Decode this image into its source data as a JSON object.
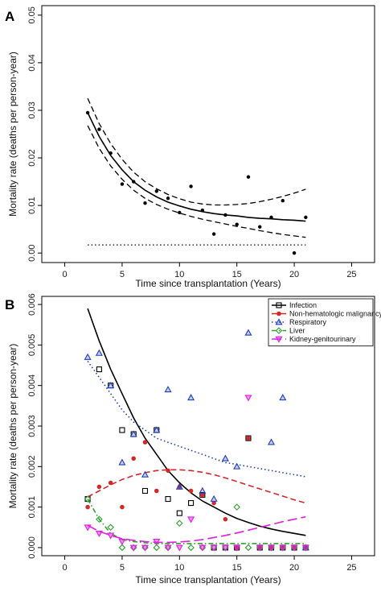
{
  "chart_data": [
    {
      "type": "scatter",
      "panel_label": "A",
      "xlabel": "Time since transplantation (Years)",
      "ylabel": "Mortality rate (deaths per person-year)",
      "xlim": [
        -2,
        27
      ],
      "ylim": [
        -0.002,
        0.052
      ],
      "xticks": [
        "0",
        "5",
        "10",
        "15",
        "20",
        "25"
      ],
      "yticks": [
        "0.00",
        "0.01",
        "0.02",
        "0.03",
        "0.04",
        "0.05"
      ],
      "grid": false,
      "legend": null,
      "series": [
        {
          "kind": "points",
          "x": [
            2,
            3,
            4,
            5,
            6,
            7,
            8,
            9,
            10,
            11,
            12,
            13,
            14,
            15,
            16,
            17,
            18,
            19,
            20,
            21
          ],
          "y": [
            0.0295,
            0.026,
            0.021,
            0.0145,
            0.015,
            0.0105,
            0.013,
            0.0115,
            0.0085,
            0.014,
            0.009,
            0.004,
            0.008,
            0.006,
            0.016,
            0.0055,
            0.0075,
            0.011,
            0.0,
            0.0075
          ]
        },
        {
          "kind": "fit",
          "style": "solid",
          "x": [
            2,
            3,
            4,
            5,
            6,
            7,
            8,
            9,
            10,
            11,
            12,
            13,
            14,
            15,
            16,
            17,
            18,
            19,
            20,
            21
          ],
          "y": [
            0.0295,
            0.0245,
            0.0205,
            0.0175,
            0.015,
            0.0132,
            0.0118,
            0.0107,
            0.0099,
            0.0092,
            0.0087,
            0.0083,
            0.008,
            0.0078,
            0.0075,
            0.0073,
            0.0072,
            0.007,
            0.0069,
            0.0067
          ]
        },
        {
          "kind": "ci_upper",
          "style": "dashed",
          "x": [
            2,
            3,
            4,
            5,
            6,
            7,
            8,
            9,
            10,
            11,
            12,
            13,
            14,
            15,
            16,
            17,
            18,
            19,
            20,
            21
          ],
          "y": [
            0.0325,
            0.0272,
            0.023,
            0.0197,
            0.017,
            0.015,
            0.0135,
            0.0123,
            0.0114,
            0.0107,
            0.0103,
            0.0101,
            0.0101,
            0.0102,
            0.0104,
            0.0108,
            0.0113,
            0.0119,
            0.0126,
            0.0134
          ]
        },
        {
          "kind": "ci_lower",
          "style": "dashed",
          "x": [
            2,
            3,
            4,
            5,
            6,
            7,
            8,
            9,
            10,
            11,
            12,
            13,
            14,
            15,
            16,
            17,
            18,
            19,
            20,
            21
          ],
          "y": [
            0.0268,
            0.022,
            0.0183,
            0.0155,
            0.0132,
            0.0115,
            0.0102,
            0.0092,
            0.0084,
            0.0077,
            0.0071,
            0.0066,
            0.0061,
            0.0056,
            0.0052,
            0.0047,
            0.0043,
            0.0039,
            0.0036,
            0.0033
          ]
        },
        {
          "kind": "reference",
          "style": "dotted",
          "x": [
            2,
            21
          ],
          "y": [
            0.0017,
            0.0017
          ]
        }
      ]
    },
    {
      "type": "scatter",
      "panel_label": "B",
      "xlabel": "Time since transplantation (Years)",
      "ylabel": "Mortality rate (deaths per person-year)",
      "xlim": [
        -2,
        27
      ],
      "ylim": [
        -0.0002,
        0.0062
      ],
      "xticks": [
        "0",
        "5",
        "10",
        "15",
        "20",
        "25"
      ],
      "yticks": [
        "0.000",
        "0.001",
        "0.002",
        "0.003",
        "0.004",
        "0.005",
        "0.006"
      ],
      "grid": false,
      "legend": "top-right",
      "series": [
        {
          "name": "Infection",
          "color": "#000000",
          "marker": "square",
          "line": "solid",
          "points_x": [
            2,
            3,
            4,
            5,
            6,
            7,
            8,
            9,
            10,
            11,
            12,
            13,
            14,
            15,
            16,
            17,
            18,
            19,
            20,
            21
          ],
          "points_y": [
            0.0012,
            0.0044,
            0.004,
            0.0029,
            0.0028,
            0.0014,
            0.0029,
            0.0012,
            0.00085,
            0.0011,
            0.0013,
            0.0,
            0.0,
            0.0,
            0.0027,
            0.0,
            0.0,
            0.0,
            0.0,
            0.0
          ],
          "curve_x": [
            2,
            3,
            4,
            5,
            6,
            7,
            8,
            9,
            10,
            11,
            12,
            13,
            14,
            15,
            16,
            17,
            18,
            19,
            20,
            21
          ],
          "curve_y": [
            0.0059,
            0.0051,
            0.0044,
            0.0038,
            0.0032,
            0.0027,
            0.0023,
            0.0019,
            0.0016,
            0.00135,
            0.00115,
            0.001,
            0.00085,
            0.00072,
            0.00062,
            0.00053,
            0.00046,
            0.0004,
            0.00035,
            0.0003
          ]
        },
        {
          "name": "Non-hematologic malignancy",
          "color": "#d62728",
          "marker": "circle",
          "line": "dashed",
          "points_x": [
            2,
            3,
            4,
            5,
            6,
            7,
            8,
            9,
            10,
            11,
            12,
            13,
            14,
            15,
            16,
            17,
            18,
            19,
            20,
            21
          ],
          "points_y": [
            0.001,
            0.0015,
            0.0016,
            0.001,
            0.0022,
            0.0026,
            0.0014,
            0.0019,
            0.0015,
            0.0014,
            0.0013,
            0.0011,
            0.0007,
            0.0,
            0.0027,
            0.0,
            0.0,
            0.0,
            0.0,
            0.0
          ],
          "curve_x": [
            2,
            3,
            4,
            5,
            6,
            7,
            8,
            9,
            10,
            11,
            12,
            13,
            14,
            15,
            16,
            17,
            18,
            19,
            20,
            21
          ],
          "curve_y": [
            0.00125,
            0.0014,
            0.00155,
            0.00168,
            0.00178,
            0.00185,
            0.0019,
            0.00192,
            0.00192,
            0.0019,
            0.00186,
            0.0018,
            0.00172,
            0.00163,
            0.00154,
            0.00145,
            0.00136,
            0.00127,
            0.00118,
            0.0011
          ]
        },
        {
          "name": "Respiratory",
          "color": "#1f3fbf",
          "marker": "triangle-up",
          "line": "dotted",
          "points_x": [
            2,
            3,
            4,
            5,
            6,
            7,
            8,
            9,
            10,
            11,
            12,
            13,
            14,
            15,
            16,
            18,
            19,
            21
          ],
          "points_y": [
            0.0047,
            0.0048,
            0.004,
            0.0021,
            0.0028,
            0.0018,
            0.0029,
            0.0039,
            0.0015,
            0.0037,
            0.0014,
            0.0012,
            0.0022,
            0.002,
            0.0053,
            0.0026,
            0.0037,
            0.0
          ],
          "curve_x": [
            2,
            3,
            4,
            5,
            6,
            7,
            8,
            9,
            10,
            11,
            12,
            13,
            14,
            15,
            16,
            17,
            18,
            19,
            20,
            21
          ],
          "curve_y": [
            0.0046,
            0.0042,
            0.0038,
            0.0034,
            0.0031,
            0.0029,
            0.0027,
            0.0026,
            0.0025,
            0.0024,
            0.0023,
            0.0022,
            0.0021,
            0.00205,
            0.002,
            0.00195,
            0.0019,
            0.00185,
            0.0018,
            0.00175
          ]
        },
        {
          "name": "Liver",
          "color": "#2ca02c",
          "marker": "diamond",
          "line": "dashdot",
          "points_x": [
            2,
            3,
            4,
            5,
            6,
            7,
            8,
            9,
            10,
            11,
            12,
            13,
            14,
            15,
            16,
            17,
            18,
            19,
            20,
            21
          ],
          "points_y": [
            0.0012,
            0.0007,
            0.0005,
            0.0,
            0.0,
            0.0,
            0.0,
            0.0,
            0.0006,
            0.0,
            0.0,
            0.0,
            0.0,
            0.001,
            0.0,
            0.0,
            0.0,
            0.0,
            0.0,
            0.0
          ],
          "curve_x": [
            2,
            3,
            4,
            5,
            6,
            7,
            8,
            9,
            10,
            11,
            12,
            13,
            14,
            15,
            16,
            17,
            18,
            19,
            20,
            21
          ],
          "curve_y": [
            0.0012,
            0.0007,
            0.00035,
            0.0002,
            0.00015,
            0.00012,
            0.0001,
            0.0001,
            0.0001,
            0.0001,
            0.0001,
            0.0001,
            0.0001,
            0.0001,
            0.0001,
            0.0001,
            0.0001,
            0.0001,
            0.0001,
            0.0001
          ]
        },
        {
          "name": "Kidney-genitourinary",
          "color": "#e020e0",
          "marker": "triangle-down",
          "line": "longdash",
          "points_x": [
            2,
            3,
            4,
            5,
            6,
            7,
            8,
            9,
            10,
            11,
            12,
            13,
            14,
            15,
            16,
            17,
            18,
            19,
            20,
            21
          ],
          "points_y": [
            0.0005,
            0.00035,
            0.0003,
            0.00015,
            0.0,
            0.0,
            0.00015,
            0.0,
            0.0,
            0.0007,
            0.0,
            0.0,
            0.0,
            0.0,
            0.0037,
            0.0,
            0.0,
            0.0,
            0.0,
            0.0
          ],
          "curve_x": [
            2,
            3,
            4,
            5,
            6,
            7,
            8,
            9,
            10,
            11,
            12,
            13,
            14,
            15,
            16,
            17,
            18,
            19,
            20,
            21
          ],
          "curve_y": [
            0.00055,
            0.0004,
            0.0003,
            0.00022,
            0.00018,
            0.00015,
            0.00013,
            0.00013,
            0.00014,
            0.00016,
            0.0002,
            0.00025,
            0.0003,
            0.00036,
            0.00043,
            0.0005,
            0.00057,
            0.00064,
            0.0007,
            0.00076
          ]
        }
      ]
    }
  ]
}
